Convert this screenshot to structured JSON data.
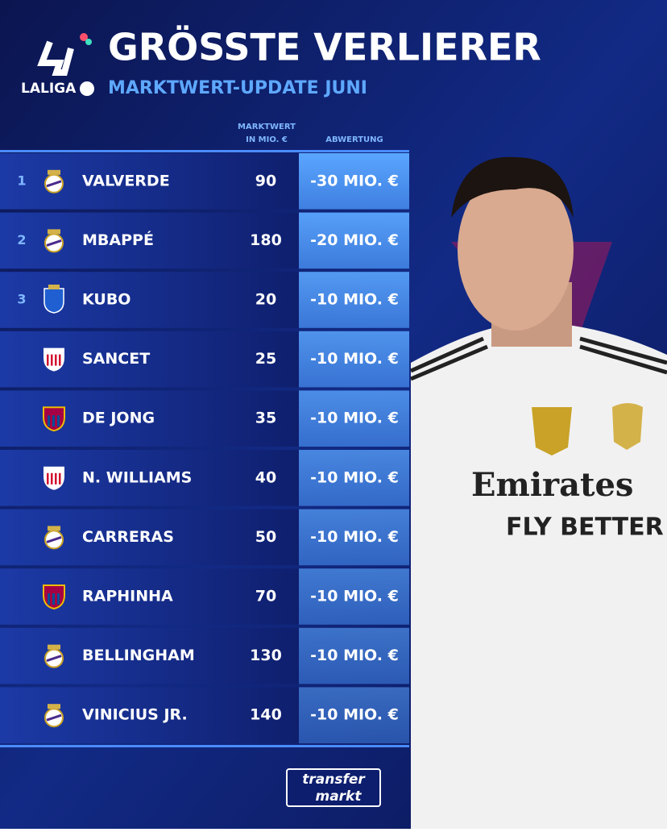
{
  "header": {
    "logo": "LALIGA",
    "title": "GRÖSSTE VERLIERER",
    "subtitle": "MARKTWERT-UPDATE JUNI"
  },
  "table": {
    "columns": {
      "value": [
        "MARKTWERT",
        "IN MIO. €"
      ],
      "change": "ABWERTUNG"
    },
    "rows": [
      {
        "rank": "1",
        "player": "VALVERDE",
        "value": 90,
        "change": "-30 MIO. €"
      },
      {
        "rank": "2",
        "player": "MBAPPÉ",
        "value": 180,
        "change": "-20 MIO. €"
      },
      {
        "rank": "3",
        "player": "KUBO",
        "value": 20,
        "change": "-10 MIO. €"
      },
      {
        "player": "SANCET",
        "value": 25,
        "change": "-10 MIO. €"
      },
      {
        "player": "DE JONG",
        "value": 35,
        "change": "-10 MIO. €"
      },
      {
        "player": "N. WILLIAMS",
        "value": 40,
        "change": "-10 MIO. €"
      },
      {
        "player": "CARRERAS",
        "value": 50,
        "change": "-10 MIO. €"
      },
      {
        "player": "RAPHINHA",
        "value": 70,
        "change": "-10 MIO. €"
      },
      {
        "player": "BELLINGHAM",
        "value": 130,
        "change": "-10 MIO. €"
      },
      {
        "player": "VINICIUS JR.",
        "value": 140,
        "change": "-10 MIO. €"
      }
    ]
  },
  "footer": {
    "brand": [
      "transfer",
      "markt"
    ]
  },
  "shirt": [
    "Emirates",
    "FLY BETTER"
  ]
}
